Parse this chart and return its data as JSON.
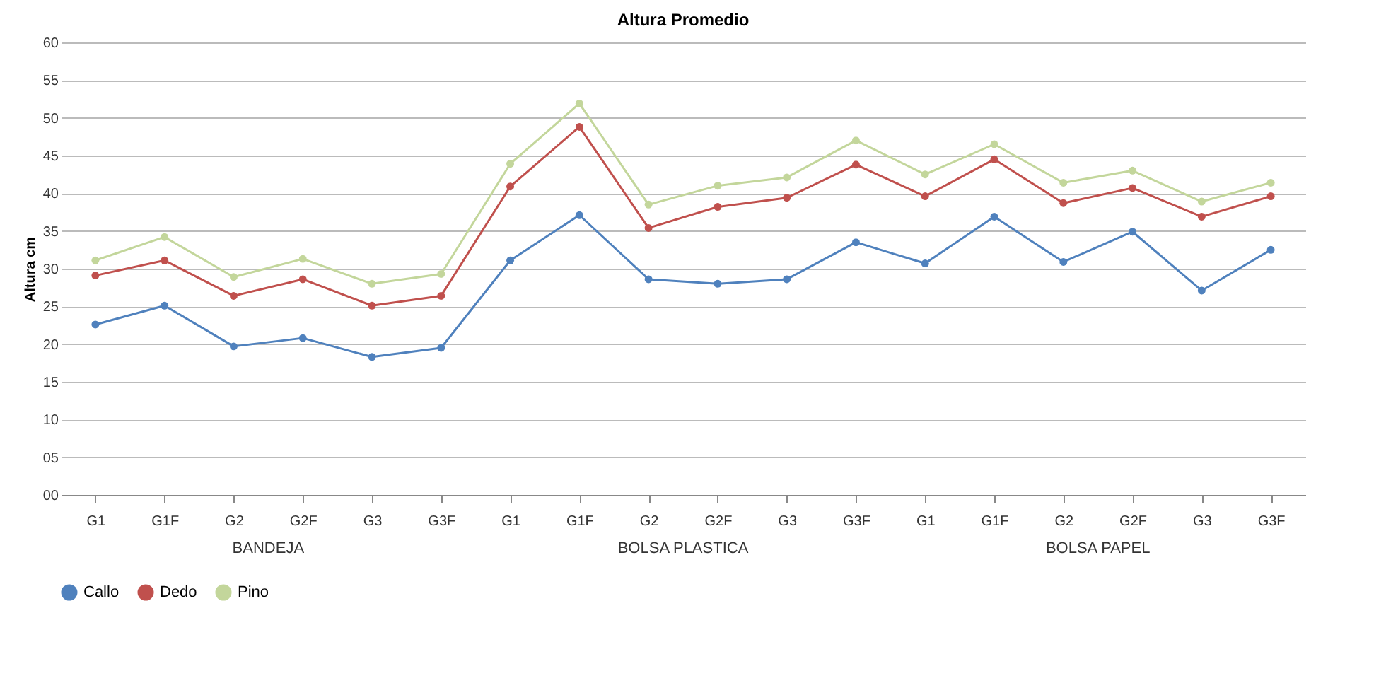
{
  "chart_data": {
    "type": "line",
    "title": "Altura Promedio",
    "ylabel": "Altura cm",
    "categories": [
      "G1",
      "G1F",
      "G2",
      "G2F",
      "G3",
      "G3F",
      "G1",
      "G1F",
      "G2",
      "G2F",
      "G3",
      "G3F",
      "G1",
      "G1F",
      "G2",
      "G2F",
      "G3",
      "G3F"
    ],
    "annotations": [
      "BANDEJA",
      "BOLSA PLASTICA",
      "BOLSA PAPEL"
    ],
    "series": [
      {
        "name": "Callo",
        "color": "#4f81bd",
        "values": [
          22.6,
          25.1,
          19.7,
          20.8,
          18.3,
          19.5,
          31.1,
          37.1,
          28.6,
          28.0,
          28.6,
          33.5,
          30.7,
          36.9,
          30.9,
          34.9,
          27.1,
          32.5
        ]
      },
      {
        "name": "Dedo",
        "color": "#c0504d",
        "values": [
          29.1,
          31.1,
          26.4,
          28.6,
          25.1,
          26.4,
          40.9,
          48.8,
          35.4,
          38.2,
          39.4,
          43.8,
          39.6,
          44.5,
          38.7,
          40.7,
          36.9,
          39.6
        ]
      },
      {
        "name": "Pino",
        "color": "#c3d69b",
        "values": [
          31.1,
          34.2,
          28.9,
          31.3,
          28.0,
          29.3,
          43.9,
          51.9,
          38.5,
          41.0,
          42.1,
          47.0,
          42.5,
          46.5,
          41.4,
          43.0,
          38.9,
          41.4
        ]
      }
    ],
    "ylim": [
      0,
      60
    ],
    "yticks": [
      {
        "value": 0,
        "label": "00"
      },
      {
        "value": 5,
        "label": "05"
      },
      10,
      15,
      20,
      25,
      30,
      35,
      40,
      45,
      50,
      55,
      60
    ],
    "grid": "y",
    "legend": "bottom",
    "marker": "circle",
    "line_style": "solid"
  }
}
